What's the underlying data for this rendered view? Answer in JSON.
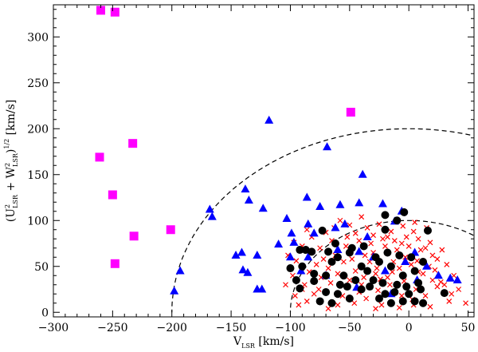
{
  "chart_data": {
    "type": "scatter",
    "title": "",
    "xlabel": "V_LSR [km/s]",
    "ylabel": "(U²_LSR + W²_LSR)^1/2 [km/s]",
    "xlim": [
      -300,
      55
    ],
    "ylim": [
      -5,
      335
    ],
    "xticks": [
      -300,
      -250,
      -200,
      -150,
      -100,
      -50,
      0,
      50
    ],
    "yticks": [
      0,
      50,
      100,
      150,
      200,
      250,
      300
    ],
    "xtick_labels": [
      "−300",
      "−250",
      "−200",
      "−150",
      "−100",
      "−50",
      "0",
      "50"
    ],
    "ytick_labels": [
      "0",
      "50",
      "100",
      "150",
      "200",
      "250",
      "300"
    ],
    "reference_curves": [
      {
        "shape": "circle",
        "center": [
          0,
          0
        ],
        "radius": 100,
        "style": "dashed"
      },
      {
        "shape": "circle",
        "center": [
          0,
          0
        ],
        "radius": 200,
        "style": "dashed"
      }
    ],
    "series": [
      {
        "marker": "square",
        "color": "#ff00ff",
        "points": [
          [
            -260,
            329
          ],
          [
            -248,
            327
          ],
          [
            -233,
            184
          ],
          [
            -261,
            169
          ],
          [
            -250,
            128
          ],
          [
            -232,
            83
          ],
          [
            -248,
            53
          ],
          [
            -201,
            90
          ],
          [
            -49,
            218
          ]
        ]
      },
      {
        "marker": "triangle",
        "color": "#0000ff",
        "points": [
          [
            -118,
            209
          ],
          [
            -69,
            180
          ],
          [
            -39,
            150
          ],
          [
            -138,
            134
          ],
          [
            -168,
            112
          ],
          [
            -166,
            104
          ],
          [
            -135,
            122
          ],
          [
            -123,
            113
          ],
          [
            -103,
            102
          ],
          [
            -86,
            125
          ],
          [
            -75,
            115
          ],
          [
            -58,
            117
          ],
          [
            -85,
            96
          ],
          [
            -42,
            119
          ],
          [
            -6,
            110
          ],
          [
            -141,
            65
          ],
          [
            -146,
            62
          ],
          [
            -128,
            62
          ],
          [
            -99,
            86
          ],
          [
            -97,
            76
          ],
          [
            -110,
            74
          ],
          [
            -80,
            86
          ],
          [
            -62,
            92
          ],
          [
            -54,
            96
          ],
          [
            -22,
            118
          ],
          [
            -12,
            99
          ],
          [
            -60,
            68
          ],
          [
            -30,
            60
          ],
          [
            -3,
            55
          ],
          [
            -193,
            45
          ],
          [
            -198,
            23
          ],
          [
            -140,
            46
          ],
          [
            -136,
            43
          ],
          [
            -128,
            25
          ],
          [
            -124,
            25
          ],
          [
            -91,
            45
          ],
          [
            -70,
            40
          ],
          [
            -44,
            27
          ],
          [
            -20,
            45
          ],
          [
            7,
            35
          ],
          [
            5,
            65
          ],
          [
            15,
            50
          ],
          [
            -35,
            82
          ],
          [
            -15,
            20
          ],
          [
            25,
            40
          ],
          [
            35,
            37
          ],
          [
            41,
            35
          ],
          [
            -100,
            60
          ],
          [
            -85,
            60
          ],
          [
            -42,
            66
          ]
        ]
      },
      {
        "marker": "circle",
        "color": "#000000",
        "points": [
          [
            -92,
            68
          ],
          [
            -87,
            68
          ],
          [
            -73,
            89
          ],
          [
            -60,
            60
          ],
          [
            -50,
            65
          ],
          [
            -20,
            90
          ],
          [
            -20,
            106
          ],
          [
            -10,
            100
          ],
          [
            -4,
            109
          ],
          [
            16,
            89
          ],
          [
            -100,
            48
          ],
          [
            -90,
            50
          ],
          [
            -80,
            42
          ],
          [
            -80,
            34
          ],
          [
            -70,
            40
          ],
          [
            -65,
            55
          ],
          [
            -95,
            35
          ],
          [
            -92,
            26
          ],
          [
            -70,
            22
          ],
          [
            -60,
            20
          ],
          [
            -50,
            15
          ],
          [
            -40,
            25
          ],
          [
            -35,
            45
          ],
          [
            -25,
            55
          ],
          [
            -15,
            50
          ],
          [
            -5,
            40
          ],
          [
            5,
            45
          ],
          [
            -10,
            30
          ],
          [
            -20,
            20
          ],
          [
            0,
            20
          ],
          [
            10,
            25
          ],
          [
            -45,
            35
          ],
          [
            -55,
            40
          ],
          [
            -30,
            35
          ],
          [
            -25,
            15
          ],
          [
            -15,
            10
          ],
          [
            -5,
            12
          ],
          [
            5,
            12
          ],
          [
            12,
            10
          ],
          [
            30,
            21
          ],
          [
            -75,
            12
          ],
          [
            -65,
            10
          ],
          [
            -52,
            28
          ],
          [
            -40,
            50
          ],
          [
            -28,
            60
          ],
          [
            -18,
            65
          ],
          [
            -8,
            62
          ],
          [
            2,
            60
          ],
          [
            12,
            55
          ],
          [
            -48,
            70
          ],
          [
            -38,
            72
          ],
          [
            -58,
            30
          ],
          [
            -33,
            28
          ],
          [
            -22,
            32
          ],
          [
            -12,
            22
          ],
          [
            -2,
            28
          ],
          [
            8,
            32
          ],
          [
            -82,
            66
          ],
          [
            -68,
            66
          ],
          [
            -62,
            75
          ]
        ]
      },
      {
        "marker": "cross",
        "color": "#ff0000",
        "points": [
          [
            -82,
            82
          ],
          [
            -70,
            87
          ],
          [
            -58,
            100
          ],
          [
            -45,
            86
          ],
          [
            -35,
            92
          ],
          [
            -25,
            96
          ],
          [
            -15,
            88
          ],
          [
            -5,
            94
          ],
          [
            5,
            98
          ],
          [
            15,
            92
          ],
          [
            -102,
            62
          ],
          [
            -95,
            56
          ],
          [
            -90,
            72
          ],
          [
            -75,
            70
          ],
          [
            -65,
            78
          ],
          [
            -52,
            82
          ],
          [
            -42,
            78
          ],
          [
            -32,
            75
          ],
          [
            -22,
            80
          ],
          [
            -12,
            78
          ],
          [
            -2,
            82
          ],
          [
            8,
            80
          ],
          [
            18,
            76
          ],
          [
            28,
            68
          ],
          [
            -98,
            40
          ],
          [
            -88,
            30
          ],
          [
            -78,
            52
          ],
          [
            -68,
            48
          ],
          [
            -55,
            55
          ],
          [
            -45,
            45
          ],
          [
            -38,
            38
          ],
          [
            -28,
            42
          ],
          [
            -18,
            38
          ],
          [
            -8,
            48
          ],
          [
            2,
            52
          ],
          [
            12,
            42
          ],
          [
            22,
            46
          ],
          [
            32,
            52
          ],
          [
            38,
            40
          ],
          [
            -96,
            18
          ],
          [
            -86,
            12
          ],
          [
            -76,
            25
          ],
          [
            -66,
            32
          ],
          [
            -56,
            18
          ],
          [
            -46,
            10
          ],
          [
            -36,
            15
          ],
          [
            -26,
            24
          ],
          [
            -16,
            30
          ],
          [
            -6,
            18
          ],
          [
            4,
            8
          ],
          [
            14,
            18
          ],
          [
            24,
            28
          ],
          [
            34,
            12
          ],
          [
            -72,
            58
          ],
          [
            -62,
            62
          ],
          [
            -48,
            58
          ],
          [
            -30,
            65
          ],
          [
            -20,
            72
          ],
          [
            -10,
            68
          ],
          [
            0,
            72
          ],
          [
            10,
            68
          ],
          [
            20,
            62
          ],
          [
            -84,
            44
          ],
          [
            -74,
            38
          ],
          [
            -60,
            42
          ],
          [
            -50,
            35
          ],
          [
            -40,
            30
          ],
          [
            -33,
            55
          ],
          [
            -27,
            48
          ],
          [
            -13,
            55
          ],
          [
            -3,
            60
          ],
          [
            7,
            56
          ],
          [
            17,
            50
          ],
          [
            27,
            33
          ],
          [
            -90,
            25
          ],
          [
            -80,
            20
          ],
          [
            -60,
            8
          ],
          [
            -42,
            22
          ],
          [
            -23,
            8
          ],
          [
            -8,
            5
          ],
          [
            6,
            25
          ],
          [
            18,
            6
          ],
          [
            30,
            30
          ],
          [
            42,
            25
          ],
          [
            -104,
            30
          ],
          [
            -97,
            76
          ],
          [
            -86,
            90
          ],
          [
            -50,
            95
          ],
          [
            -40,
            104
          ],
          [
            -30,
            84
          ],
          [
            -18,
            82
          ],
          [
            -6,
            75
          ],
          [
            4,
            88
          ],
          [
            14,
            70
          ],
          [
            24,
            58
          ],
          [
            -63,
            92
          ],
          [
            -53,
            72
          ],
          [
            -37,
            62
          ],
          [
            -24,
            36
          ],
          [
            -14,
            44
          ],
          [
            -4,
            34
          ],
          [
            8,
            44
          ],
          [
            20,
            35
          ],
          [
            36,
            20
          ],
          [
            48,
            10
          ],
          [
            3,
            14
          ],
          [
            -28,
            4
          ],
          [
            -68,
            4
          ],
          [
            -93,
            8
          ]
        ]
      }
    ]
  }
}
